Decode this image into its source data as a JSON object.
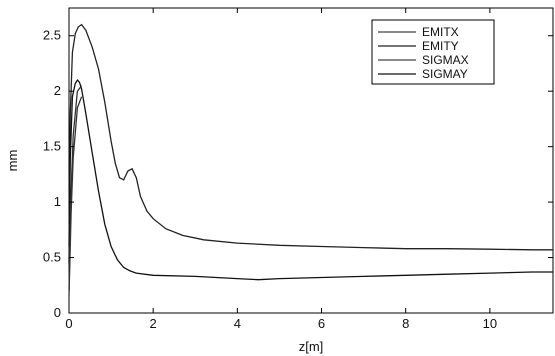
{
  "chart_data": {
    "type": "line",
    "xlabel": "z[m]",
    "ylabel": "mm",
    "xlim": [
      0,
      11.5
    ],
    "ylim": [
      0,
      2.75
    ],
    "xticks": [
      0,
      2,
      4,
      6,
      8,
      10
    ],
    "yticks": [
      0,
      0.5,
      1,
      1.5,
      2,
      2.5
    ],
    "xtick_labels": [
      "0",
      "2",
      "4",
      "6",
      "8",
      "10"
    ],
    "ytick_labels": [
      "0",
      "0.5",
      "1",
      "1.5",
      "2",
      "2.5"
    ],
    "grid": false,
    "legend_position": "top-right",
    "legend": [
      "EMITX",
      "EMITY",
      "SIGMAX",
      "SIGMAY"
    ],
    "series": [
      {
        "name": "SIGMAX",
        "color": "#222222",
        "x": [
          0,
          0.03,
          0.08,
          0.15,
          0.22,
          0.3,
          0.4,
          0.55,
          0.7,
          0.85,
          1.0,
          1.1,
          1.2,
          1.3,
          1.4,
          1.5,
          1.6,
          1.7,
          1.85,
          2.0,
          2.3,
          2.7,
          3.2,
          4.0,
          5.0,
          6.0,
          7.0,
          8.0,
          9.0,
          10.0,
          11.0,
          11.5
        ],
        "y": [
          0.6,
          1.8,
          2.35,
          2.52,
          2.58,
          2.6,
          2.55,
          2.4,
          2.2,
          1.9,
          1.55,
          1.35,
          1.22,
          1.2,
          1.28,
          1.3,
          1.22,
          1.05,
          0.92,
          0.85,
          0.76,
          0.7,
          0.66,
          0.63,
          0.61,
          0.6,
          0.59,
          0.58,
          0.58,
          0.575,
          0.57,
          0.57
        ]
      },
      {
        "name": "SIGMAY",
        "color": "#111111",
        "x": [
          0,
          0.03,
          0.08,
          0.15,
          0.2,
          0.25,
          0.3,
          0.4,
          0.55,
          0.7,
          0.85,
          1.0,
          1.15,
          1.3,
          1.45,
          1.6,
          2.0,
          3.0,
          4.0,
          4.5,
          5.0,
          6.0,
          7.0,
          8.0,
          9.0,
          10.0,
          11.0,
          11.5
        ],
        "y": [
          0.45,
          1.4,
          1.95,
          2.07,
          2.1,
          2.08,
          2.02,
          1.8,
          1.45,
          1.1,
          0.8,
          0.6,
          0.48,
          0.41,
          0.38,
          0.36,
          0.34,
          0.33,
          0.31,
          0.3,
          0.31,
          0.32,
          0.33,
          0.34,
          0.35,
          0.36,
          0.37,
          0.37
        ]
      },
      {
        "name": "EMITX",
        "color": "#333333",
        "x": [
          0,
          0.05,
          0.1,
          0.2,
          0.3
        ],
        "y": [
          0.2,
          1.1,
          1.6,
          2.0,
          2.05
        ]
      },
      {
        "name": "EMITY",
        "color": "#333333",
        "x": [
          0,
          0.05,
          0.1,
          0.2,
          0.3
        ],
        "y": [
          0.15,
          0.9,
          1.4,
          1.85,
          1.95
        ]
      }
    ]
  }
}
